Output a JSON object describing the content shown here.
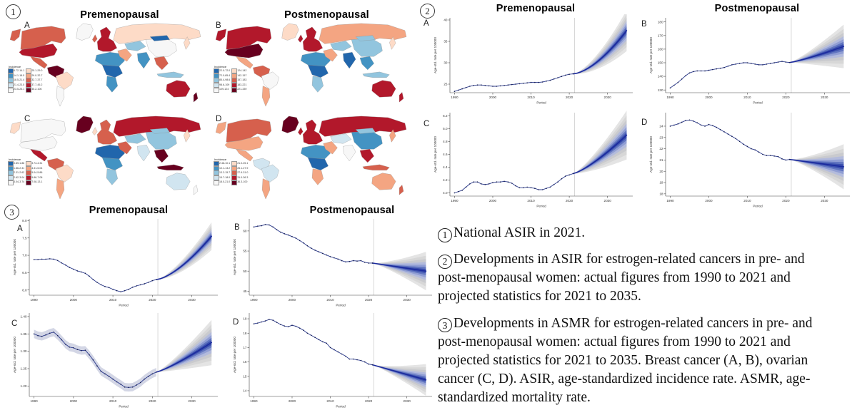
{
  "sections": {
    "s1": {
      "num": "1",
      "titles": [
        "Premenopausal",
        "Postmenopausal"
      ]
    },
    "s2": {
      "num": "2",
      "titles": [
        "Premenopausal",
        "Postmenopausal"
      ]
    },
    "s3": {
      "num": "3",
      "titles": [
        "Premenopausal",
        "Postmenopausal"
      ]
    }
  },
  "caption": {
    "items": [
      {
        "num": "1",
        "text": "National ASIR in 2021."
      },
      {
        "num": "2",
        "text": "Developments in ASIR for estrogen-related cancers in pre- and post-menopausal women: actual figures from 1990 to 2021 and projected statistics for 2021 to 2035."
      },
      {
        "num": "3",
        "text": "Developments in ASMR for estrogen-related cancers in pre- and post-menopausal women: actual figures from 1990 to 2021 and projected statistics for 2021 to 2035. Breast cancer (A, B), ovarian cancer (C, D). ASIR, age-standardized incidence rate. ASMR, age-standardized mortality rate."
      }
    ]
  },
  "palette": {
    "blues": [
      "#2166ac",
      "#4393c3",
      "#92c5de",
      "#d1e5f0",
      "#f7f7f7"
    ],
    "reds": [
      "#fddbc7",
      "#f4a582",
      "#d6604d",
      "#b2182b",
      "#67001f"
    ],
    "hist_line": "#2b3a8f",
    "hist_marker": "#151e4f",
    "proj_line": "#1b2a9e",
    "divider": "#cfcfcf",
    "map_border": "#8d8d8d"
  },
  "chart_data": [
    {
      "id": "map-a",
      "type": "choropleth",
      "panel": "A",
      "column": "Premenopausal",
      "legend_title": "Incidence",
      "legend": {
        "blue_labels": [
          "6.72-14.1",
          "14.1-18.5",
          "18.5-21.4",
          "21.4-23.5",
          "23.5-25.1"
        ],
        "red_labels": [
          "25.1-29.0",
          "29.0-32.7",
          "32.7-37.7",
          "37.7-45.2",
          "45.2-106"
        ]
      },
      "regions": {
        "greenland": "#f7f7f7",
        "alaska": "#d6604d",
        "canada": "#d6604d",
        "usa": "#b2182b",
        "mexico": "#d6604d",
        "southam_n": "#67001f",
        "brazil": "#fddbc7",
        "argentina": "#f7f7f7",
        "uk": "#d6604d",
        "europe": "#b2182b",
        "russia": "#fddbc7",
        "africa_n": "#4393c3",
        "africa_c": "#2166ac",
        "africa_s": "#4393c3",
        "mideast": "#f4a582",
        "centralasia": "#92c5de",
        "india": "#4393c3",
        "china": "#f7f7f7",
        "mongolia": "#2166ac",
        "seasia": "#d6604d",
        "indonesia": "#92c5de",
        "japan": "#fddbc7",
        "australia": "#b2182b",
        "nz": "#67001f"
      }
    },
    {
      "id": "map-b",
      "type": "choropleth",
      "panel": "B",
      "column": "Postmenopausal",
      "legend_title": "Incidence",
      "legend": {
        "blue_labels": [
          "22.0-72.0",
          "72.0-85.4",
          "85.4-98.6",
          "98.6-109",
          "109-124"
        ],
        "red_labels": [
          "124-142",
          "142-157",
          "157-183",
          "183-221",
          "221-339"
        ]
      },
      "regions": {
        "greenland": "#fddbc7",
        "alaska": "#b2182b",
        "canada": "#b2182b",
        "usa": "#67001f",
        "mexico": "#f4a582",
        "southam_n": "#d6604d",
        "brazil": "#f7f7f7",
        "argentina": "#f4a582",
        "uk": "#b2182b",
        "europe": "#b2182b",
        "russia": "#f4a582",
        "africa_n": "#4393c3",
        "africa_c": "#2166ac",
        "africa_s": "#92c5de",
        "mideast": "#f4a582",
        "centralasia": "#92c5de",
        "india": "#2166ac",
        "china": "#92c5de",
        "mongolia": "#92c5de",
        "seasia": "#4393c3",
        "indonesia": "#92c5de",
        "japan": "#fddbc7",
        "australia": "#b2182b",
        "nz": "#b2182b"
      }
    },
    {
      "id": "map-c",
      "type": "choropleth",
      "panel": "C",
      "column": "Premenopausal",
      "legend_title": "Incidence",
      "legend": {
        "blue_labels": [
          "0.89-1.86",
          "1.86-2.31",
          "2.31-2.62",
          "2.62-3.04",
          "3.04-3.74"
        ],
        "red_labels": [
          "3.74-4.31",
          "4.31-5.04",
          "5.04-5.86",
          "5.86-7.08",
          "7.08-13.1"
        ]
      },
      "regions": {
        "greenland": "#67001f",
        "alaska": "#fddbc7",
        "canada": "#f7f7f7",
        "usa": "#f7f7f7",
        "mexico": "#b2182b",
        "southam_n": "#d6604d",
        "brazil": "#fddbc7",
        "argentina": "#f4a582",
        "uk": "#fddbc7",
        "europe": "#d6604d",
        "russia": "#b2182b",
        "africa_n": "#2166ac",
        "africa_c": "#4393c3",
        "africa_s": "#92c5de",
        "mideast": "#d6604d",
        "centralasia": "#92c5de",
        "india": "#d1e5f0",
        "china": "#92c5de",
        "mongolia": "#92c5de",
        "seasia": "#67001f",
        "indonesia": "#67001f",
        "japan": "#fddbc7",
        "australia": "#d1e5f0",
        "nz": "#f7f7f7"
      }
    },
    {
      "id": "map-d",
      "type": "choropleth",
      "panel": "D",
      "column": "Postmenopausal",
      "legend_title": "Incidence",
      "legend": {
        "blue_labels": [
          "2.48-10.1",
          "10.1-13.2",
          "13.2-15.7",
          "15.7-18.0",
          "18.0-21.0"
        ],
        "red_labels": [
          "21.0-25.1",
          "25.1-27.9",
          "27.9-31.0",
          "31.0-36.3",
          "36.3-100"
        ]
      },
      "regions": {
        "greenland": "#67001f",
        "alaska": "#f4a582",
        "canada": "#d6604d",
        "usa": "#f4a582",
        "mexico": "#f4a582",
        "southam_n": "#d1e5f0",
        "brazil": "#d1e5f0",
        "argentina": "#f4a582",
        "uk": "#b2182b",
        "europe": "#b2182b",
        "russia": "#b2182b",
        "africa_n": "#4393c3",
        "africa_c": "#2166ac",
        "africa_s": "#f4a582",
        "mideast": "#f4a582",
        "centralasia": "#d1e5f0",
        "india": "#f7f7f7",
        "china": "#4393c3",
        "mongolia": "#92c5de",
        "seasia": "#b2182b",
        "indonesia": "#d6604d",
        "japan": "#f4a582",
        "australia": "#f4a582",
        "nz": "#d6604d"
      }
    },
    {
      "id": "asir-a",
      "type": "line",
      "panel": "A",
      "section": "ASIR",
      "column": "Premenopausal",
      "xlabel": "Period",
      "ylabel": "Age-std. rate per 100000",
      "x_start": 1990,
      "x_end_hist": 2021,
      "x_end_proj": 2035,
      "xticks": [
        1990,
        2000,
        2010,
        2020,
        2030
      ],
      "yticks": [
        "25",
        "30",
        "35",
        "40"
      ],
      "ylim": [
        23,
        40.5
      ],
      "values": [
        23.3,
        23.6,
        23.9,
        24.2,
        24.5,
        24.7,
        24.8,
        24.8,
        24.7,
        24.6,
        24.5,
        24.5,
        24.6,
        24.7,
        24.8,
        24.9,
        25.0,
        25.1,
        25.2,
        25.3,
        25.4,
        25.4,
        25.4,
        25.5,
        25.7,
        25.9,
        26.2,
        26.5,
        26.8,
        27.1,
        27.3,
        27.4
      ],
      "projection": {
        "end": 37.5,
        "curve": 1.6,
        "fan": 4.8,
        "fan_curve": 1.3
      }
    },
    {
      "id": "asir-b",
      "type": "line",
      "panel": "B",
      "section": "ASIR",
      "column": "Postmenopausal",
      "xlabel": "Period",
      "ylabel": "Age-std. rate per 100000",
      "x_start": 1990,
      "x_end_hist": 2021,
      "x_end_proj": 2035,
      "xticks": [
        1990,
        2000,
        2010,
        2020,
        2030
      ],
      "yticks": [
        "130",
        "140",
        "150",
        "160",
        "170",
        "180"
      ],
      "ylim": [
        128,
        183
      ],
      "values": [
        131.5,
        133.5,
        135.5,
        138.0,
        140.5,
        142.5,
        143.5,
        144.0,
        144.0,
        144.0,
        144.5,
        145.0,
        145.5,
        146.0,
        146.5,
        147.5,
        148.5,
        149.0,
        149.5,
        150.0,
        150.0,
        149.5,
        149.0,
        148.5,
        148.5,
        149.0,
        149.5,
        150.0,
        150.5,
        151.0,
        150.5,
        150.2
      ],
      "projection": {
        "end": 162,
        "curve": 1.2,
        "fan": 16,
        "fan_curve": 1.2
      }
    },
    {
      "id": "asir-c",
      "type": "line",
      "panel": "C",
      "section": "ASIR",
      "column": "Premenopausal",
      "xlabel": "Period",
      "ylabel": "Age-std. rate per 100000",
      "x_start": 1990,
      "x_end_hist": 2021,
      "x_end_proj": 2035,
      "xticks": [
        1990,
        2000,
        2010,
        2020,
        2030
      ],
      "yticks": [
        "4.0",
        "4.2",
        "4.4",
        "4.6",
        "4.8",
        "5.0",
        "5.2"
      ],
      "ylim": [
        3.95,
        5.25
      ],
      "values": [
        4.0,
        4.02,
        4.04,
        4.09,
        4.14,
        4.17,
        4.17,
        4.14,
        4.13,
        4.14,
        4.16,
        4.17,
        4.17,
        4.18,
        4.17,
        4.15,
        4.11,
        4.08,
        4.08,
        4.09,
        4.08,
        4.07,
        4.05,
        4.05,
        4.07,
        4.09,
        4.13,
        4.17,
        4.22,
        4.26,
        4.28,
        4.3
      ],
      "projection": {
        "end": 4.9,
        "curve": 1.3,
        "fan": 0.38,
        "fan_curve": 1.2
      }
    },
    {
      "id": "asir-d",
      "type": "line",
      "panel": "D",
      "section": "ASIR",
      "column": "Postmenopausal",
      "xlabel": "Period",
      "ylabel": "Age-std. rate per 100000",
      "x_start": 1990,
      "x_end_hist": 2021,
      "x_end_proj": 2035,
      "xticks": [
        1990,
        2000,
        2010,
        2020,
        2030
      ],
      "yticks": [
        "18",
        "19",
        "20",
        "21",
        "22",
        "23",
        "24"
      ],
      "ylim": [
        17.8,
        25.2
      ],
      "values": [
        24.0,
        24.1,
        24.2,
        24.35,
        24.5,
        24.55,
        24.45,
        24.3,
        24.1,
        24.0,
        24.15,
        24.05,
        23.9,
        23.7,
        23.5,
        23.3,
        23.1,
        22.9,
        22.65,
        22.4,
        22.2,
        22.0,
        21.9,
        21.7,
        21.5,
        21.4,
        21.4,
        21.35,
        21.3,
        21.1,
        21.0,
        21.05
      ],
      "projection": {
        "end": 20.4,
        "curve": 1.0,
        "fan": 2.0,
        "fan_curve": 1.3
      }
    },
    {
      "id": "asmr-a",
      "type": "line",
      "panel": "A",
      "section": "ASMR",
      "column": "Premenopausal",
      "xlabel": "Period",
      "ylabel": "Age-std. rate per 100000",
      "x_start": 1990,
      "x_end_hist": 2021,
      "x_end_proj": 2035,
      "xticks": [
        1990,
        2000,
        2010,
        2020,
        2030
      ],
      "yticks": [
        "6.0",
        "6.5",
        "7.0",
        "7.5",
        "8.0"
      ],
      "ylim": [
        5.85,
        8.05
      ],
      "values": [
        6.88,
        6.88,
        6.89,
        6.89,
        6.9,
        6.89,
        6.85,
        6.78,
        6.72,
        6.65,
        6.6,
        6.55,
        6.52,
        6.48,
        6.4,
        6.3,
        6.22,
        6.15,
        6.1,
        6.07,
        6.02,
        5.98,
        5.95,
        5.98,
        6.02,
        6.08,
        6.12,
        6.15,
        6.18,
        6.22,
        6.27,
        6.3
      ],
      "projection": {
        "end": 7.55,
        "curve": 1.5,
        "fan": 0.4,
        "fan_curve": 1.2
      }
    },
    {
      "id": "asmr-b",
      "type": "line",
      "panel": "B",
      "section": "ASMR",
      "column": "Postmenopausal",
      "xlabel": "Period",
      "ylabel": "Age-std. rate per 100000",
      "x_start": 1990,
      "x_end_hist": 2021,
      "x_end_proj": 2035,
      "xticks": [
        1990,
        2000,
        2010,
        2020,
        2030
      ],
      "yticks": [
        "45",
        "50",
        "55",
        "60"
      ],
      "ylim": [
        44,
        63
      ],
      "values": [
        61.0,
        61.2,
        61.3,
        61.6,
        61.5,
        61.0,
        60.3,
        59.7,
        59.3,
        59.0,
        58.6,
        58.2,
        57.6,
        57.0,
        56.3,
        55.7,
        55.2,
        54.8,
        54.4,
        54.0,
        53.6,
        53.3,
        53.0,
        52.6,
        52.3,
        52.4,
        52.6,
        52.5,
        52.6,
        52.2,
        52.0,
        52.0
      ],
      "projection": {
        "end": 50.0,
        "curve": 1.0,
        "fan": 4.8,
        "fan_curve": 1.3
      }
    },
    {
      "id": "asmr-c",
      "type": "line",
      "panel": "C",
      "section": "ASMR",
      "column": "Premenopausal",
      "xlabel": "Period",
      "ylabel": "Age-std. rate per 100000",
      "x_start": 1990,
      "x_end_hist": 2021,
      "x_end_proj": 2035,
      "xticks": [
        1990,
        2000,
        2010,
        2020,
        2030
      ],
      "yticks": [
        "1.20",
        "1.25",
        "1.30",
        "1.35",
        "1.40"
      ],
      "ylim": [
        1.17,
        1.41
      ],
      "hist_band": 0.012,
      "values": [
        1.35,
        1.345,
        1.343,
        1.347,
        1.352,
        1.355,
        1.345,
        1.333,
        1.32,
        1.312,
        1.31,
        1.305,
        1.302,
        1.303,
        1.29,
        1.275,
        1.258,
        1.242,
        1.235,
        1.228,
        1.22,
        1.212,
        1.205,
        1.197,
        1.196,
        1.197,
        1.203,
        1.21,
        1.22,
        1.228,
        1.235,
        1.24
      ],
      "projection": {
        "end": 1.325,
        "curve": 1.2,
        "fan": 0.065,
        "fan_curve": 1.2
      }
    },
    {
      "id": "asmr-d",
      "type": "line",
      "panel": "D",
      "section": "ASMR",
      "column": "Postmenopausal",
      "xlabel": "Period",
      "ylabel": "Age-std. rate per 100000",
      "x_start": 1990,
      "x_end_hist": 2021,
      "x_end_proj": 2035,
      "xticks": [
        1990,
        2000,
        2010,
        2020,
        2030
      ],
      "yticks": [
        "14",
        "15",
        "16",
        "17",
        "18",
        "19"
      ],
      "ylim": [
        13.6,
        19.4
      ],
      "values": [
        18.65,
        18.7,
        18.78,
        18.85,
        18.95,
        18.9,
        18.75,
        18.6,
        18.5,
        18.45,
        18.55,
        18.48,
        18.35,
        18.2,
        18.0,
        17.85,
        17.7,
        17.55,
        17.4,
        17.3,
        17.0,
        16.85,
        16.7,
        16.55,
        16.4,
        16.2,
        16.2,
        16.15,
        16.1,
        16.0,
        15.85,
        15.8
      ],
      "projection": {
        "end": 14.75,
        "curve": 1.0,
        "fan": 1.1,
        "fan_curve": 1.3
      }
    }
  ]
}
